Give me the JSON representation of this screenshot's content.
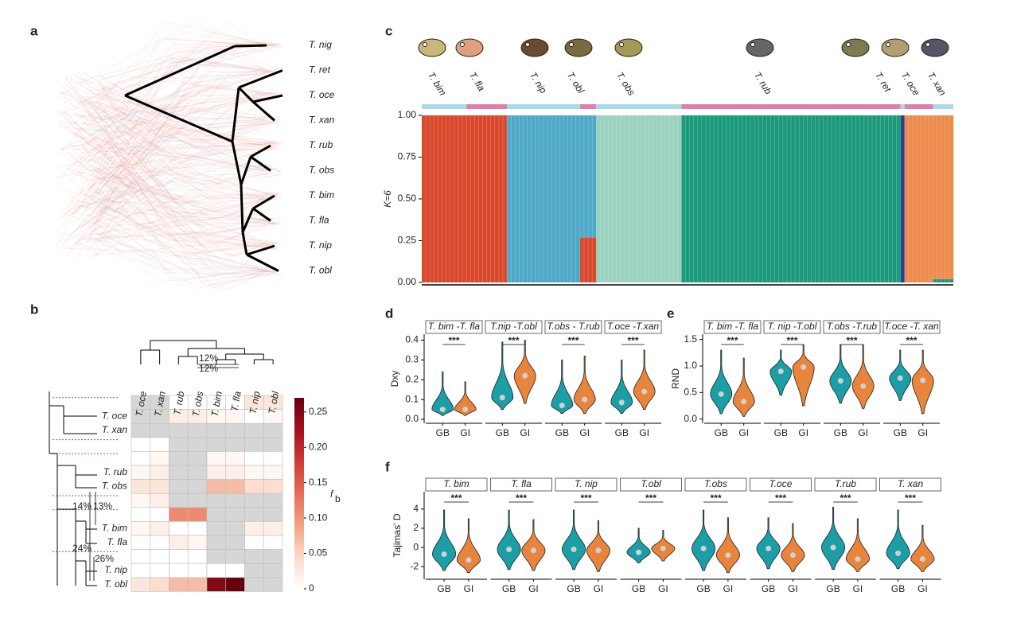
{
  "chart_data": [
    {
      "type": "tree",
      "label": "a",
      "leaves": [
        "T. nig",
        "T. ret",
        "T. oce",
        "T. xan",
        "T. rub",
        "T. obs",
        "T. bim",
        "T. fla",
        "T. nip",
        "T. obl"
      ]
    },
    {
      "type": "heatmap",
      "label": "b",
      "columns": [
        "T. oce",
        "T. xan",
        "T. rub",
        "T. obs",
        "T. bim",
        "T. fla",
        "T. nip",
        "T. obl"
      ],
      "rows": [
        null,
        "T. oce",
        "T. xan",
        null,
        null,
        "T. rub",
        "T. obs",
        null,
        null,
        "T. bim",
        "T. fla",
        null,
        "T. nip",
        "T. obl"
      ],
      "values": [
        [
          null,
          null,
          0,
          0,
          0,
          0,
          0.03,
          0.03
        ],
        [
          null,
          null,
          0.02,
          0.02,
          0.01,
          0.01,
          0,
          0.01
        ],
        [
          null,
          null,
          null,
          null,
          null,
          null,
          null,
          null
        ],
        [
          0,
          0,
          null,
          null,
          null,
          null,
          null,
          null
        ],
        [
          0,
          0.01,
          null,
          null,
          0.01,
          0.01,
          0,
          0
        ],
        [
          0.01,
          0.02,
          null,
          null,
          0.02,
          0.02,
          0.01,
          0.01
        ],
        [
          0.03,
          0.03,
          null,
          null,
          0.07,
          0.07,
          0.04,
          0.04
        ],
        [
          0.01,
          0.02,
          null,
          null,
          null,
          null,
          null,
          null
        ],
        [
          0,
          0,
          0.11,
          0.11,
          null,
          null,
          null,
          null
        ],
        [
          0.01,
          0.02,
          0,
          0,
          null,
          null,
          0.02,
          0.02
        ],
        [
          0,
          0,
          0.02,
          0.01,
          null,
          null,
          0,
          0
        ],
        [
          0,
          0,
          0,
          0,
          null,
          null,
          null,
          null
        ],
        [
          0,
          0,
          0,
          0,
          0,
          0,
          null,
          null
        ],
        [
          0.03,
          0.04,
          0.07,
          0.07,
          0.25,
          0.27,
          null,
          null
        ]
      ],
      "clim": [
        0,
        0.27
      ],
      "cticks": [
        0,
        0.05,
        {
          "value": 0.1,
          "label": "0.10"
        },
        0.15,
        {
          "value": 0.2,
          "label": "0.20"
        },
        0.25
      ],
      "colorbar_label": "f",
      "colorbar_label_sub": "b",
      "annotations": [
        "14%",
        "13%",
        "24%",
        "26%",
        "12%",
        "12%"
      ]
    },
    {
      "type": "structure",
      "label": "c",
      "ylabel": "K=6",
      "categories": [
        "T. bim",
        "T. fla",
        "T. nip",
        "T. obl",
        "T. obs",
        "T. rub",
        "T. ret",
        "T. oce",
        "T. xan"
      ],
      "sample_sizes": [
        11,
        10,
        18,
        4,
        21,
        54,
        1,
        7,
        5
      ],
      "bar_colors": [
        "#a8dbeb",
        "#e07fa9"
      ],
      "series": [
        {
          "color": "#d9482b",
          "values": [
            1,
            1,
            0,
            0.27,
            0,
            0,
            0,
            0,
            0
          ]
        },
        {
          "color": "#4ea8c8",
          "values": [
            0,
            0,
            1,
            0.73,
            0,
            0,
            0,
            0,
            0
          ]
        },
        {
          "color": "#9bd1bf",
          "values": [
            0,
            0,
            0,
            0,
            1,
            0,
            0,
            0,
            0
          ]
        },
        {
          "color": "#1b9a7b",
          "values": [
            0,
            0,
            0,
            0,
            0,
            1,
            0,
            0,
            0.02
          ]
        },
        {
          "color": "#2b3d8c",
          "values": [
            0,
            0,
            0,
            0,
            0,
            0,
            1,
            0,
            0
          ]
        },
        {
          "color": "#ee8b4c",
          "values": [
            0,
            0,
            0,
            0,
            0,
            0,
            0,
            1,
            0.98
          ]
        }
      ],
      "ylim": [
        0,
        1
      ],
      "yticks": [
        {
          "value": 0,
          "label": "0.00"
        },
        0.25,
        {
          "value": 0.5,
          "label": "0.50"
        },
        0.75,
        {
          "value": 1,
          "label": "1.00"
        }
      ]
    },
    {
      "type": "violin",
      "label": "d",
      "ylabel": "Dxy",
      "groups": [
        "GB",
        "GI"
      ],
      "colors": [
        "#1b9ea6",
        "#e8843c"
      ],
      "ylim": [
        -0.02,
        0.43
      ],
      "yticks": [
        {
          "value": 0,
          "label": "0.0"
        },
        0.1,
        0.2,
        0.3,
        0.4
      ],
      "facets": [
        {
          "title": "T. bim -T. fla",
          "significance": "***",
          "min": [
            0.02,
            0.02
          ],
          "median": [
            0.05,
            0.05
          ],
          "max": [
            0.24,
            0.19
          ]
        },
        {
          "title": "T.nip -T.obl",
          "significance": "***",
          "min": [
            0.05,
            0.08
          ],
          "median": [
            0.11,
            0.22
          ],
          "max": [
            0.39,
            0.4
          ]
        },
        {
          "title": "T.obs - T.rub",
          "significance": "***",
          "min": [
            0.03,
            0.03
          ],
          "median": [
            0.07,
            0.1
          ],
          "max": [
            0.3,
            0.32
          ]
        },
        {
          "title": "T.oce -T.xan",
          "significance": "***",
          "min": [
            0.03,
            0.05
          ],
          "median": [
            0.085,
            0.14
          ],
          "max": [
            0.3,
            0.35
          ]
        }
      ]
    },
    {
      "type": "violin",
      "label": "e",
      "ylabel": "RND",
      "groups": [
        "GB",
        "GI"
      ],
      "colors": [
        "#1b9ea6",
        "#e8843c"
      ],
      "ylim": [
        -0.08,
        1.6
      ],
      "yticks": [
        {
          "value": 0,
          "label": "0.0"
        },
        0.5,
        {
          "value": 1,
          "label": "1.0"
        },
        1.5
      ],
      "facets": [
        {
          "title": "T. bim -T. fla",
          "significance": "***",
          "min": [
            0.1,
            0.05
          ],
          "median": [
            0.47,
            0.33
          ],
          "max": [
            1.3,
            1.15
          ]
        },
        {
          "title": "T. nip -T.obl",
          "significance": "***",
          "min": [
            0.45,
            0.25
          ],
          "median": [
            0.9,
            0.98
          ],
          "max": [
            1.3,
            1.4
          ]
        },
        {
          "title": "T.obs -T.rub",
          "significance": "***",
          "min": [
            0.3,
            0.2
          ],
          "median": [
            0.72,
            0.62
          ],
          "max": [
            1.4,
            1.4
          ]
        },
        {
          "title": "T.oce -T. xan",
          "significance": "***",
          "min": [
            0.35,
            0.1
          ],
          "median": [
            0.77,
            0.73
          ],
          "max": [
            1.3,
            1.3
          ]
        }
      ]
    },
    {
      "type": "violin",
      "label": "f",
      "ylabel": "Tajimas' D",
      "groups": [
        "GB",
        "GI"
      ],
      "colors": [
        "#1b9ea6",
        "#e8843c"
      ],
      "ylim": [
        -3.3,
        5.8
      ],
      "yticks": [
        -2,
        0,
        2,
        4
      ],
      "facets": [
        {
          "title": "T. bim",
          "significance": "***",
          "min": [
            -2.4,
            -2.6
          ],
          "median": [
            -0.7,
            -1.3
          ],
          "max": [
            3.9,
            3
          ]
        },
        {
          "title": "T. fla",
          "significance": "***",
          "min": [
            -2.3,
            -2.4
          ],
          "median": [
            -0.2,
            -0.3
          ],
          "max": [
            3.9,
            2.9
          ]
        },
        {
          "title": "T. nip",
          "significance": "***",
          "min": [
            -2.3,
            -2.5
          ],
          "median": [
            -0.2,
            -0.3
          ],
          "max": [
            3.9,
            2.8
          ]
        },
        {
          "title": "T.obl",
          "significance": "***",
          "min": [
            -1.6,
            -1.4
          ],
          "median": [
            -0.5,
            -0.1
          ],
          "max": [
            2,
            1.8
          ]
        },
        {
          "title": "T.obs",
          "significance": "***",
          "min": [
            -2.4,
            -2.6
          ],
          "median": [
            -0.1,
            -0.8
          ],
          "max": [
            3.9,
            3.1
          ]
        },
        {
          "title": "T.oce",
          "significance": "***",
          "min": [
            -2.2,
            -2.5
          ],
          "median": [
            -0.1,
            -0.8
          ],
          "max": [
            3.1,
            2.5
          ]
        },
        {
          "title": "T.rub",
          "significance": "***",
          "min": [
            -2.3,
            -2.5
          ],
          "median": [
            0,
            -1.2
          ],
          "max": [
            4.2,
            3
          ]
        },
        {
          "title": "T. xan",
          "significance": "***",
          "min": [
            -2.2,
            -2.5
          ],
          "median": [
            -0.6,
            -1.2
          ],
          "max": [
            3.9,
            2.3
          ]
        }
      ]
    }
  ]
}
